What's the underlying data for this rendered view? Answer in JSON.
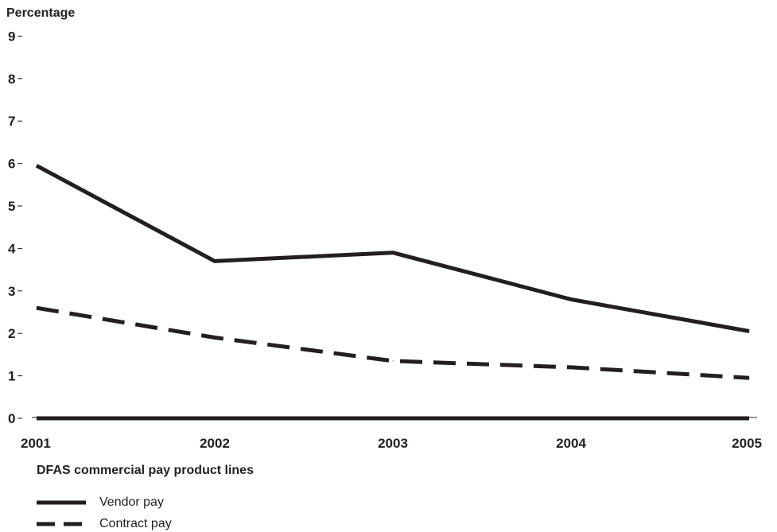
{
  "chart_data": {
    "type": "line",
    "title": "",
    "ylabel": "Percentage",
    "xlabel": "",
    "x": [
      "2001",
      "2002",
      "2003",
      "2004",
      "2005"
    ],
    "ylim": [
      0,
      9
    ],
    "yticks": [
      "0",
      "1",
      "2",
      "3",
      "4",
      "5",
      "6",
      "7",
      "8",
      "9"
    ],
    "grid": false,
    "series": [
      {
        "name": "Vendor pay",
        "style": "solid",
        "values": [
          5.95,
          3.7,
          3.9,
          2.8,
          2.05
        ]
      },
      {
        "name": "Contract pay",
        "style": "dashed",
        "values": [
          2.6,
          1.9,
          1.35,
          1.2,
          0.95
        ]
      }
    ],
    "legend": {
      "title": "DFAS commercial pay product lines",
      "placement": "bottom-left"
    },
    "colors": {
      "line": "#231f20"
    }
  }
}
